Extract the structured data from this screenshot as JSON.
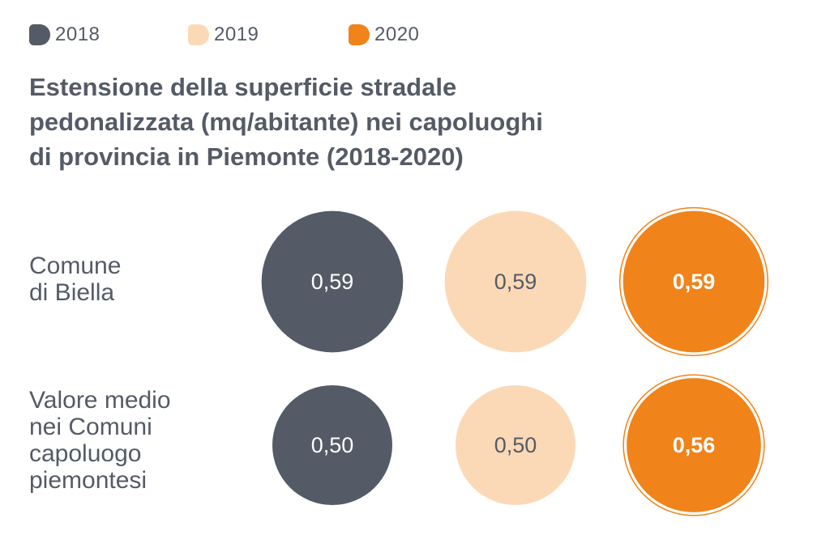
{
  "title": "Estensione della superficie stradale\npedonalizzata (mq/abitante) nei capoluoghi\ndi provincia in Piemonte (2018-2020)",
  "legend": [
    {
      "label": "2018",
      "color": "#545b66"
    },
    {
      "label": "2019",
      "color": "#fcd9b6"
    },
    {
      "label": "2020",
      "color": "#f0831a"
    }
  ],
  "chart_data": {
    "type": "bubble",
    "title": "Estensione della superficie stradale pedonalizzata (mq/abitante) nei capoluoghi di provincia in Piemonte (2018-2020)",
    "categories": [
      "Comune\ndi Biella",
      "Valore medio\nnei Comuni\ncapoluogo\npiemontesi"
    ],
    "series": [
      {
        "name": "2018",
        "values": [
          0.59,
          0.5
        ],
        "labels": [
          "0,59",
          "0,50"
        ],
        "color": "#545b66",
        "text_color": "#ffffff"
      },
      {
        "name": "2019",
        "values": [
          0.59,
          0.5
        ],
        "labels": [
          "0,59",
          "0,50"
        ],
        "color": "#fcd9b6",
        "text_color": "#545b66"
      },
      {
        "name": "2020",
        "values": [
          0.59,
          0.56
        ],
        "labels": [
          "0,59",
          "0,56"
        ],
        "color": "#f0831a",
        "text_color": "#ffffff"
      }
    ]
  }
}
